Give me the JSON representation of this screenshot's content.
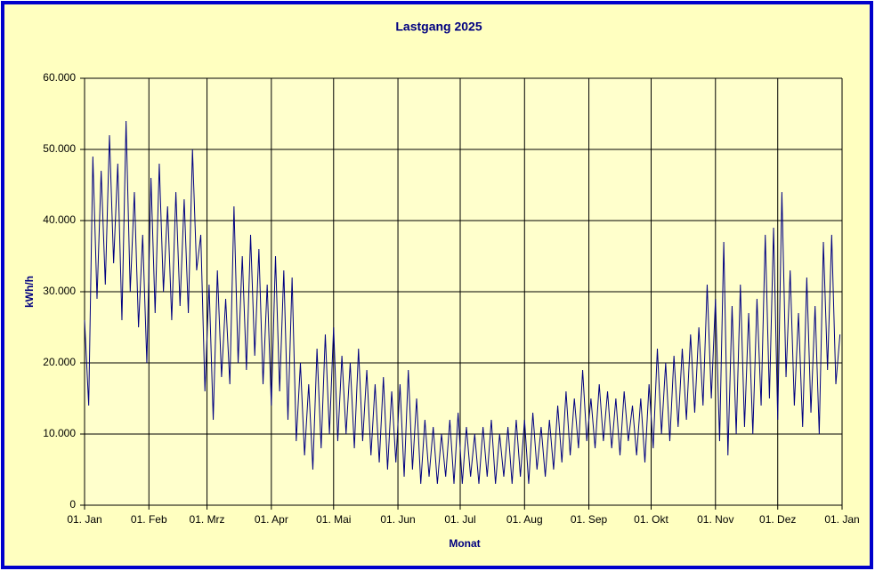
{
  "chart_data": {
    "type": "line",
    "title": "Lastgang 2025",
    "xlabel": "Monat",
    "ylabel": "kWh/h",
    "x": [
      0,
      2,
      4,
      6,
      8,
      10,
      12,
      14,
      16,
      18,
      20,
      22,
      24,
      26,
      28,
      30,
      32,
      34,
      36,
      38,
      40,
      42,
      44,
      46,
      48,
      50,
      52,
      54,
      56,
      58,
      60,
      62,
      64,
      66,
      68,
      70,
      72,
      74,
      76,
      78,
      80,
      82,
      84,
      86,
      88,
      90,
      92,
      94,
      96,
      98,
      100,
      102,
      104,
      106,
      108,
      110,
      112,
      114,
      116,
      118,
      120,
      122,
      124,
      126,
      128,
      130,
      132,
      134,
      136,
      138,
      140,
      142,
      144,
      146,
      148,
      150,
      152,
      154,
      156,
      158,
      160,
      162,
      164,
      166,
      168,
      170,
      172,
      174,
      176,
      178,
      180,
      182,
      184,
      186,
      188,
      190,
      192,
      194,
      196,
      198,
      200,
      202,
      204,
      206,
      208,
      210,
      212,
      214,
      216,
      218,
      220,
      222,
      224,
      226,
      228,
      230,
      232,
      234,
      236,
      238,
      240,
      242,
      244,
      246,
      248,
      250,
      252,
      254,
      256,
      258,
      260,
      262,
      264,
      266,
      268,
      270,
      272,
      274,
      276,
      278,
      280,
      282,
      284,
      286,
      288,
      290,
      292,
      294,
      296,
      298,
      300,
      302,
      304,
      306,
      308,
      310,
      312,
      314,
      316,
      318,
      320,
      322,
      324,
      326,
      328,
      330,
      332,
      334,
      336,
      338,
      340,
      342,
      344,
      346,
      348,
      350,
      352,
      354,
      356,
      358,
      360,
      362,
      364
    ],
    "values": [
      26000,
      14000,
      49000,
      29000,
      47000,
      31000,
      52000,
      34000,
      48000,
      26000,
      54000,
      30000,
      44000,
      25000,
      38000,
      20000,
      46000,
      27000,
      48000,
      30000,
      42000,
      26000,
      44000,
      28000,
      43000,
      27000,
      50000,
      33000,
      38000,
      16000,
      31000,
      12000,
      33000,
      18000,
      29000,
      17000,
      42000,
      20000,
      35000,
      19000,
      38000,
      21000,
      36000,
      17000,
      31000,
      14000,
      35000,
      16000,
      33000,
      12000,
      32000,
      9000,
      20000,
      7000,
      17000,
      5000,
      22000,
      8000,
      24000,
      10000,
      25000,
      9000,
      21000,
      10000,
      20000,
      8000,
      22000,
      9000,
      19000,
      7000,
      17000,
      6000,
      18000,
      5000,
      16000,
      6000,
      17000,
      4000,
      19000,
      5000,
      15000,
      3000,
      12000,
      4000,
      11000,
      3000,
      10000,
      4000,
      12000,
      3000,
      13000,
      3000,
      11000,
      4000,
      10000,
      3000,
      11000,
      4000,
      12000,
      3000,
      10000,
      4000,
      11000,
      3000,
      12000,
      4000,
      12000,
      3000,
      13000,
      5000,
      11000,
      4000,
      12000,
      5000,
      14000,
      6000,
      16000,
      7000,
      15000,
      8000,
      19000,
      9000,
      15000,
      8000,
      17000,
      9000,
      16000,
      8000,
      15000,
      7000,
      16000,
      9000,
      14000,
      7000,
      15000,
      6000,
      17000,
      8000,
      22000,
      10000,
      20000,
      9000,
      21000,
      11000,
      22000,
      12000,
      24000,
      13000,
      25000,
      14000,
      31000,
      15000,
      29000,
      9000,
      37000,
      7000,
      28000,
      10000,
      31000,
      11000,
      27000,
      10000,
      29000,
      14000,
      38000,
      15000,
      39000,
      12000,
      44000,
      18000,
      33000,
      14000,
      27000,
      11000,
      32000,
      13000,
      28000,
      10000,
      37000,
      19000,
      38000,
      17000,
      24000
    ],
    "color": "#000080",
    "xlim": [
      0,
      365
    ],
    "xticks": [
      {
        "value": 0,
        "label": "01. Jan"
      },
      {
        "value": 31,
        "label": "01. Feb"
      },
      {
        "value": 59,
        "label": "01. Mrz"
      },
      {
        "value": 90,
        "label": "01. Apr"
      },
      {
        "value": 120,
        "label": "01. Mai"
      },
      {
        "value": 151,
        "label": "01. Jun"
      },
      {
        "value": 181,
        "label": "01. Jul"
      },
      {
        "value": 212,
        "label": "01. Aug"
      },
      {
        "value": 243,
        "label": "01. Sep"
      },
      {
        "value": 273,
        "label": "01. Okt"
      },
      {
        "value": 304,
        "label": "01. Nov"
      },
      {
        "value": 334,
        "label": "01. Dez"
      },
      {
        "value": 365,
        "label": "01. Jan"
      }
    ],
    "ylim": [
      0,
      60000
    ],
    "yticks": [
      0,
      {
        "value": 10000,
        "label": "10.000"
      },
      {
        "value": 20000,
        "label": "20.000"
      },
      {
        "value": 30000,
        "label": "30.000"
      },
      {
        "value": 40000,
        "label": "40.000"
      },
      {
        "value": 50000,
        "label": "50.000"
      },
      {
        "value": 60000,
        "label": "60.000"
      }
    ],
    "grid": true
  }
}
